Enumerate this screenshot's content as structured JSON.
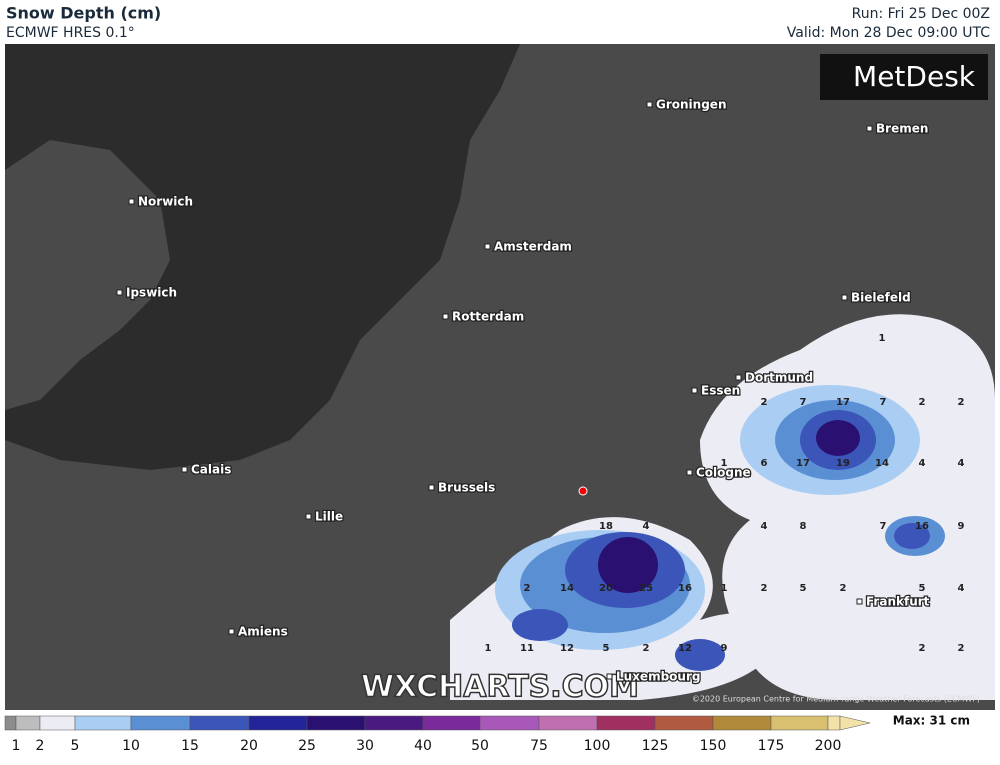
{
  "header": {
    "title": "Snow Depth (cm)",
    "model": "ECMWF HRES 0.1°",
    "run": "Run: Fri 25 Dec 00Z",
    "valid": "Valid: Mon 28 Dec 09:00 UTC"
  },
  "logo": "MetDesk",
  "map": {
    "cities": [
      "Groningen",
      "Bremen",
      "Norwich",
      "Amsterdam",
      "Ipswich",
      "Bielefeld",
      "Rotterdam",
      "Dortmund",
      "Essen",
      "Calais",
      "Cologne",
      "Brussels",
      "Lille",
      "Frankfurt",
      "Amiens",
      "Luxembourg"
    ],
    "snow_labels": [
      1,
      2,
      7,
      17,
      7,
      2,
      2,
      1,
      6,
      17,
      19,
      14,
      4,
      4,
      4,
      8,
      7,
      16,
      9,
      18,
      4,
      2,
      14,
      20,
      25,
      16,
      1,
      2,
      5,
      2,
      5,
      4,
      1,
      11,
      12,
      5,
      2,
      12,
      9,
      2,
      2
    ],
    "watermark": "WXCHARTS.COM",
    "copyright": "©2020 European Centre for Medium-range Weather Forecasts (ECMWF)"
  },
  "legend": {
    "ticks": [
      1,
      2,
      5,
      10,
      15,
      20,
      25,
      30,
      40,
      50,
      75,
      100,
      125,
      150,
      175,
      200
    ],
    "colors": [
      "#8c8c8c",
      "#bdbdbd",
      "#ececf4",
      "#a9cdf3",
      "#5b8fd4",
      "#3b55b8",
      "#23239a",
      "#2a1070",
      "#4a1a80",
      "#7a2a9a",
      "#a858b8",
      "#c070b0",
      "#a03060",
      "#b05a40",
      "#b08a3a",
      "#d8c070",
      "#f2e2a8"
    ],
    "max": "Max: 31 cm"
  }
}
